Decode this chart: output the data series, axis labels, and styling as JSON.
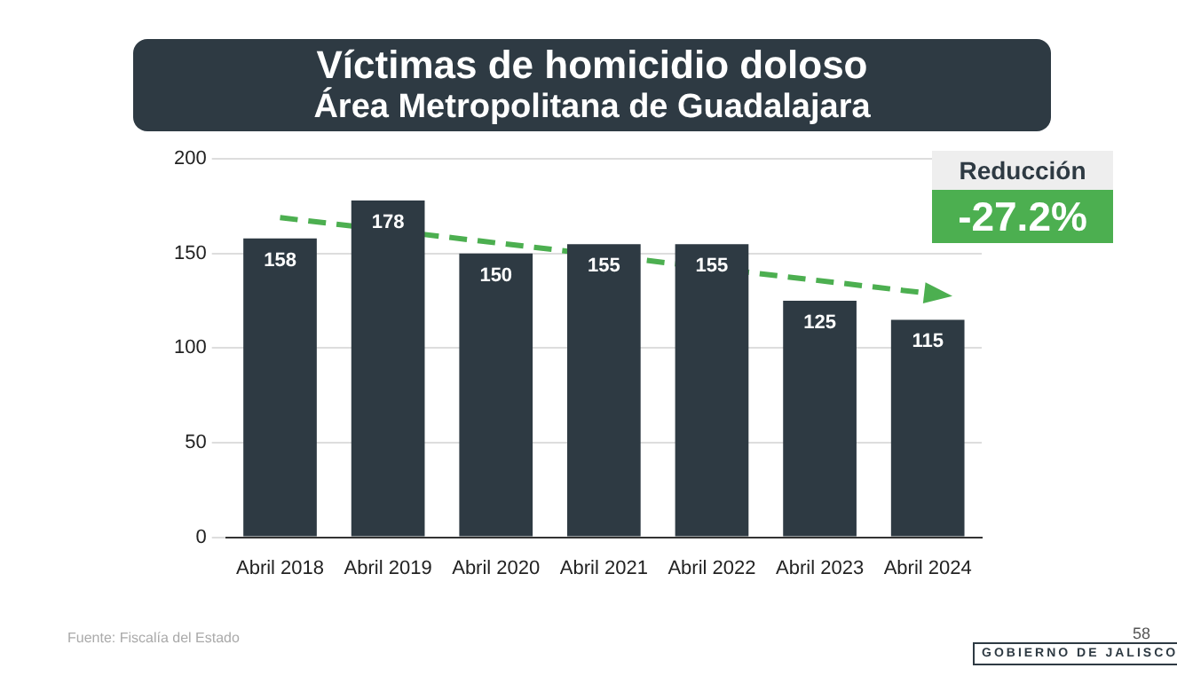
{
  "chart_data": {
    "type": "bar",
    "title": "Víctimas de homicidio doloso",
    "subtitle": "Área Metropolitana de Guadalajara",
    "categories": [
      "Abril 2018",
      "Abril 2019",
      "Abril 2020",
      "Abril 2021",
      "Abril 2022",
      "Abril 2023",
      "Abril 2024"
    ],
    "series": [
      {
        "color": "#2e3a43",
        "values": [
          158,
          178,
          150,
          155,
          155,
          125,
          115
        ],
        "value_labels": [
          "158",
          "178",
          "150",
          "155",
          "155",
          "125",
          "115"
        ]
      },
      {
        "type": "line",
        "color": "#4caf50",
        "line_style": "dashed",
        "x": [
          "Abril 2018",
          "Abril 2024"
        ],
        "values": [
          169,
          129
        ]
      }
    ],
    "ylim": [
      0,
      200
    ],
    "yticks": [
      0,
      50,
      100,
      150,
      200
    ],
    "grid": "y",
    "annotations": [
      "Reducción",
      "-27.2%",
      "Fuente: Fiscalía del Estado",
      "58",
      "GOBIERNO DE JALISCO"
    ]
  }
}
